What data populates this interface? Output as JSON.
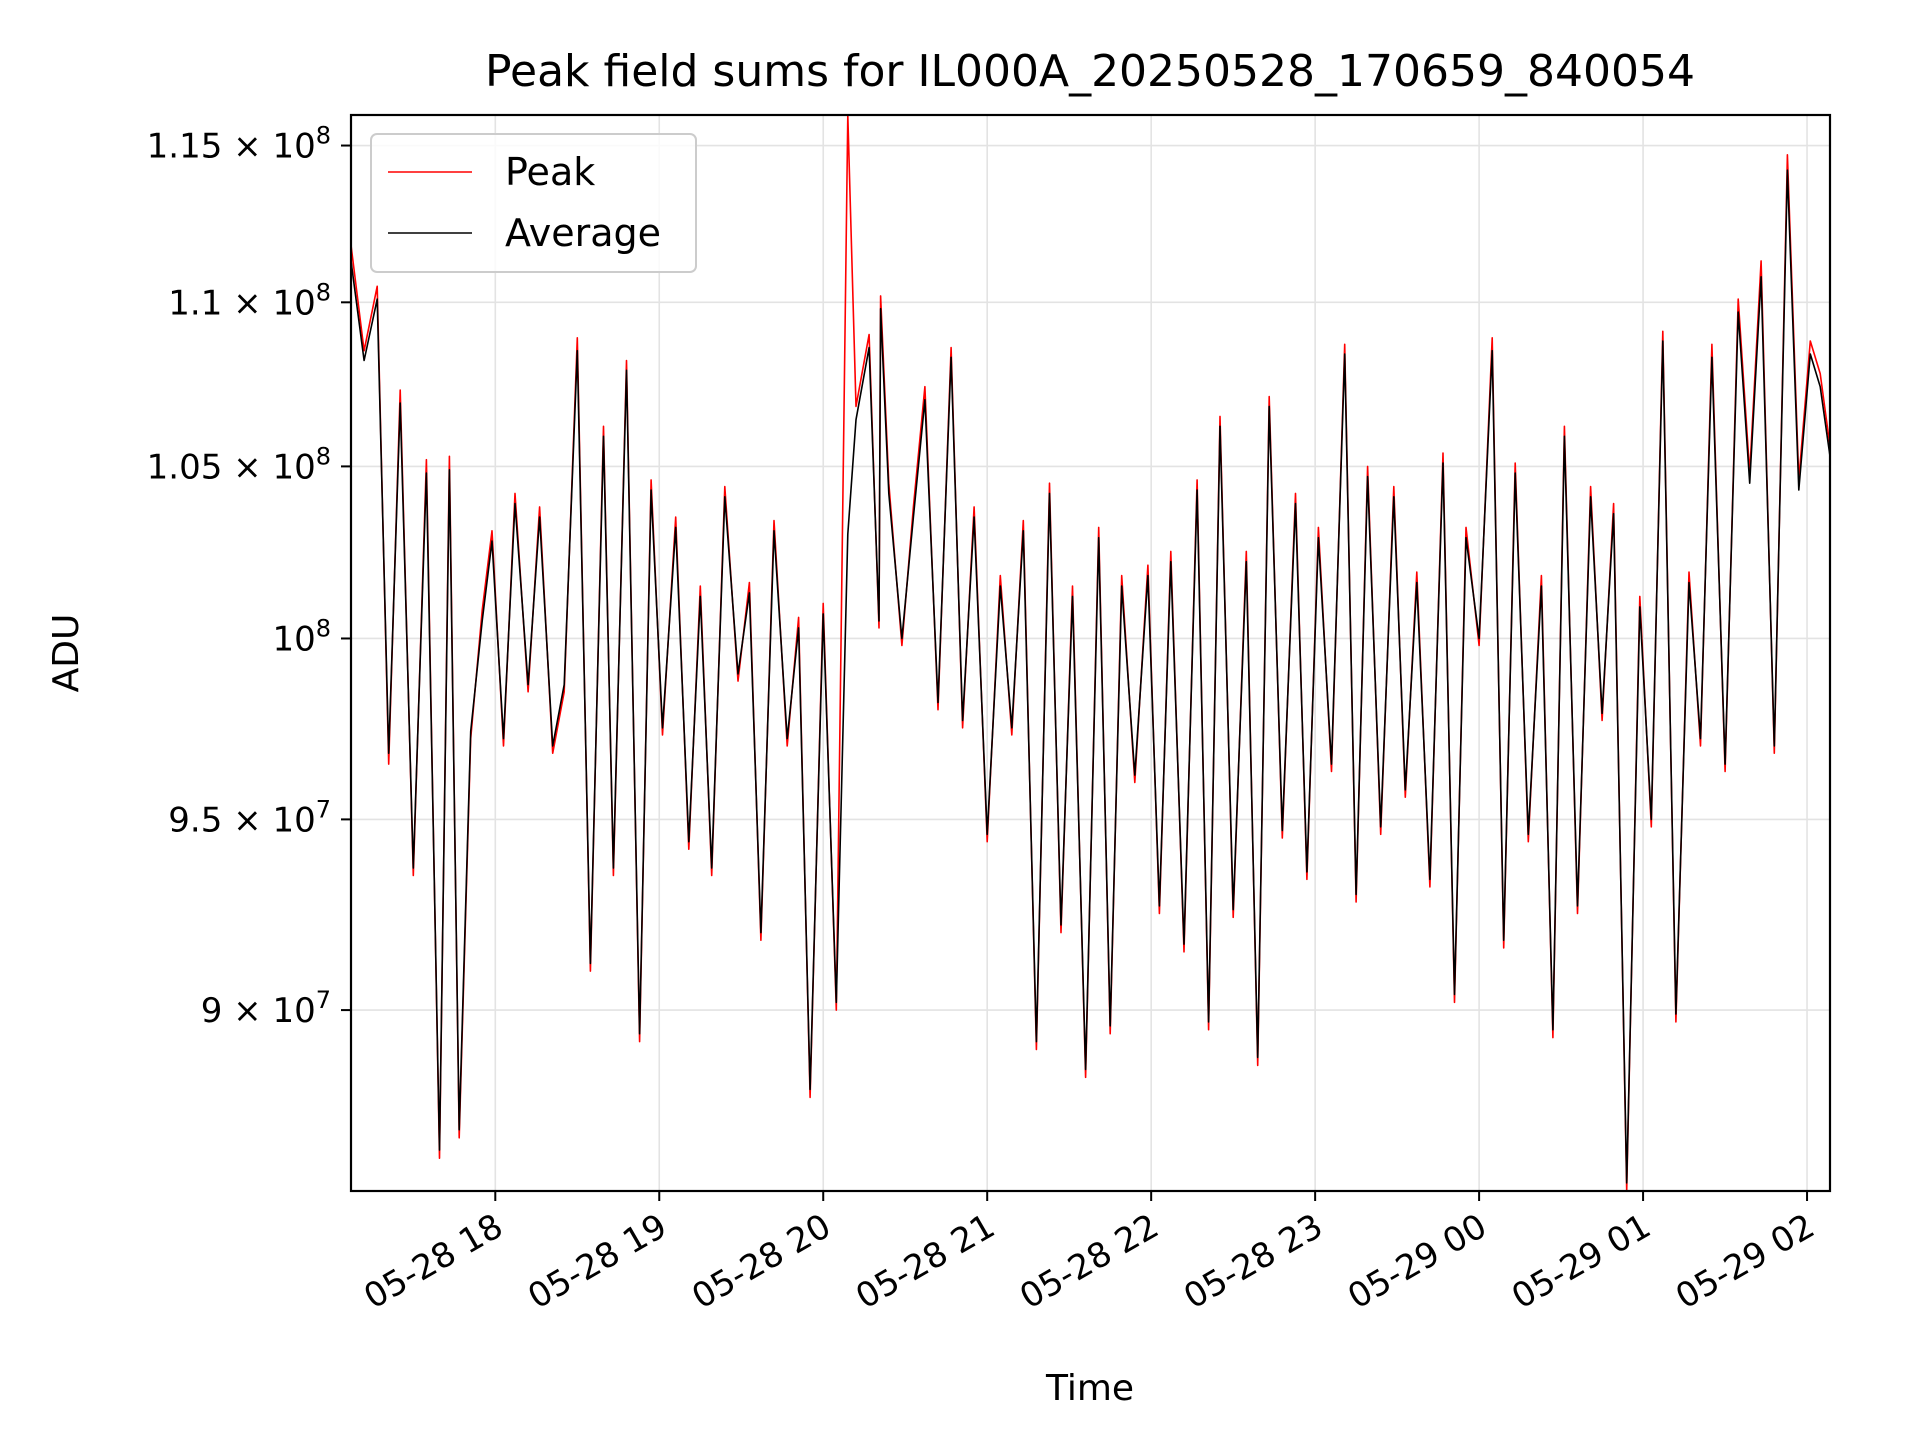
{
  "chart_data": {
    "type": "line",
    "title": "Peak field sums for IL000A_20250528_170659_840054",
    "xlabel": "Time",
    "ylabel": "ADU",
    "x_range_hours": [
      17.12,
      26.14
    ],
    "x_ticks": [
      {
        "label": "05-28 18",
        "hour": 18
      },
      {
        "label": "05-28 19",
        "hour": 19
      },
      {
        "label": "05-28 20",
        "hour": 20
      },
      {
        "label": "05-28 21",
        "hour": 21
      },
      {
        "label": "05-28 22",
        "hour": 22
      },
      {
        "label": "05-28 23",
        "hour": 23
      },
      {
        "label": "05-29 00",
        "hour": 24
      },
      {
        "label": "05-29 01",
        "hour": 25
      },
      {
        "label": "05-29 02",
        "hour": 26
      }
    ],
    "ylim": [
      85500000,
      116000000
    ],
    "y_scale": "log",
    "y_ticks": [
      {
        "value": 90000000,
        "mantissa": "9",
        "exp": "7"
      },
      {
        "value": 95000000,
        "mantissa": "9.5",
        "exp": "7"
      },
      {
        "value": 100000000,
        "mantissa": "",
        "exp": "8"
      },
      {
        "value": 105000000,
        "mantissa": "1.05",
        "exp": "8"
      },
      {
        "value": 110000000,
        "mantissa": "1.1",
        "exp": "8"
      },
      {
        "value": 115000000,
        "mantissa": "1.15",
        "exp": "8"
      }
    ],
    "grid": true,
    "legend_position": "top-left",
    "colors": {
      "peak": "#ff0000",
      "average": "#000000",
      "grid": "#e3e3e3"
    },
    "series": [
      {
        "name": "Peak",
        "color": "#ff0000",
        "x_hours": [
          17.12,
          17.2,
          17.28,
          17.35,
          17.42,
          17.5,
          17.58,
          17.66,
          17.72,
          17.78,
          17.85,
          17.92,
          17.98,
          18.05,
          18.12,
          18.2,
          18.27,
          18.35,
          18.42,
          18.5,
          18.58,
          18.66,
          18.72,
          18.8,
          18.88,
          18.95,
          19.02,
          19.1,
          19.18,
          19.25,
          19.32,
          19.4,
          19.48,
          19.55,
          19.62,
          19.7,
          19.78,
          19.85,
          19.92,
          20.0,
          20.08,
          20.15,
          20.2,
          20.28,
          20.34,
          20.35,
          20.4,
          20.48,
          20.55,
          20.62,
          20.7,
          20.78,
          20.85,
          20.92,
          21.0,
          21.08,
          21.15,
          21.22,
          21.3,
          21.38,
          21.45,
          21.52,
          21.6,
          21.68,
          21.75,
          21.82,
          21.9,
          21.98,
          22.05,
          22.12,
          22.2,
          22.28,
          22.35,
          22.42,
          22.5,
          22.58,
          22.65,
          22.72,
          22.8,
          22.88,
          22.95,
          23.02,
          23.1,
          23.18,
          23.25,
          23.32,
          23.4,
          23.48,
          23.55,
          23.62,
          23.7,
          23.78,
          23.85,
          23.92,
          24.0,
          24.08,
          24.15,
          24.22,
          24.3,
          24.38,
          24.45,
          24.52,
          24.6,
          24.68,
          24.75,
          24.82,
          24.9,
          24.98,
          25.05,
          25.12,
          25.2,
          25.28,
          25.35,
          25.42,
          25.5,
          25.58,
          25.65,
          25.72,
          25.8,
          25.88,
          25.95,
          26.02,
          26.08,
          26.14
        ],
        "values": [
          111800000,
          108500000,
          110500000,
          96500000,
          107300000,
          93500000,
          105200000,
          86300000,
          105300000,
          86800000,
          97200000,
          100800000,
          103100000,
          97000000,
          104200000,
          98500000,
          103800000,
          96800000,
          98500000,
          108900000,
          91000000,
          106200000,
          93500000,
          108200000,
          89200000,
          104600000,
          97300000,
          103500000,
          94200000,
          101500000,
          93500000,
          104400000,
          98800000,
          101600000,
          91800000,
          103400000,
          97000000,
          100600000,
          87800000,
          101000000,
          90000000,
          116000000,
          106800000,
          109000000,
          100300000,
          110200000,
          104500000,
          99800000,
          103800000,
          107400000,
          98000000,
          108600000,
          97500000,
          103800000,
          94400000,
          101800000,
          97300000,
          103400000,
          89000000,
          104500000,
          92000000,
          101500000,
          88300000,
          103200000,
          89400000,
          101800000,
          96000000,
          102100000,
          92500000,
          102500000,
          91500000,
          104600000,
          89500000,
          106500000,
          92400000,
          102500000,
          88600000,
          107100000,
          94500000,
          104200000,
          93400000,
          103200000,
          96300000,
          108700000,
          92800000,
          105000000,
          94600000,
          104400000,
          95600000,
          101900000,
          93200000,
          105400000,
          90200000,
          103200000,
          99800000,
          108900000,
          91600000,
          105100000,
          94400000,
          101800000,
          89300000,
          106200000,
          92500000,
          104400000,
          97700000,
          103900000,
          85500000,
          101200000,
          94800000,
          109100000,
          89700000,
          101900000,
          97000000,
          108700000,
          96300000,
          110100000,
          104800000,
          111300000,
          96800000,
          114700000,
          104600000,
          108800000,
          107800000,
          105600000
        ]
      },
      {
        "name": "Average",
        "color": "#000000",
        "x_hours": [
          17.12,
          17.2,
          17.28,
          17.35,
          17.42,
          17.5,
          17.58,
          17.66,
          17.72,
          17.78,
          17.85,
          17.92,
          17.98,
          18.05,
          18.12,
          18.2,
          18.27,
          18.35,
          18.42,
          18.5,
          18.58,
          18.66,
          18.72,
          18.8,
          18.88,
          18.95,
          19.02,
          19.1,
          19.18,
          19.25,
          19.32,
          19.4,
          19.48,
          19.55,
          19.62,
          19.7,
          19.78,
          19.85,
          19.92,
          20.0,
          20.08,
          20.15,
          20.2,
          20.28,
          20.34,
          20.35,
          20.4,
          20.48,
          20.55,
          20.62,
          20.7,
          20.78,
          20.85,
          20.92,
          21.0,
          21.08,
          21.15,
          21.22,
          21.3,
          21.38,
          21.45,
          21.52,
          21.6,
          21.68,
          21.75,
          21.82,
          21.9,
          21.98,
          22.05,
          22.12,
          22.2,
          22.28,
          22.35,
          22.42,
          22.5,
          22.58,
          22.65,
          22.72,
          22.8,
          22.88,
          22.95,
          23.02,
          23.1,
          23.18,
          23.25,
          23.32,
          23.4,
          23.48,
          23.55,
          23.62,
          23.7,
          23.78,
          23.85,
          23.92,
          24.0,
          24.08,
          24.15,
          24.22,
          24.3,
          24.38,
          24.45,
          24.52,
          24.6,
          24.68,
          24.75,
          24.82,
          24.9,
          24.98,
          25.05,
          25.12,
          25.2,
          25.28,
          25.35,
          25.42,
          25.5,
          25.58,
          25.65,
          25.72,
          25.8,
          25.88,
          25.95,
          26.02,
          26.08,
          26.14
        ],
        "values": [
          111300000,
          108200000,
          110100000,
          96800000,
          106900000,
          93700000,
          104800000,
          86500000,
          104900000,
          87000000,
          97400000,
          100500000,
          102800000,
          97200000,
          103900000,
          98700000,
          103500000,
          97000000,
          98700000,
          108500000,
          91200000,
          105900000,
          93700000,
          107900000,
          89400000,
          104300000,
          97500000,
          103200000,
          94400000,
          101200000,
          93700000,
          104100000,
          99000000,
          101300000,
          92000000,
          103100000,
          97200000,
          100300000,
          88000000,
          100700000,
          90200000,
          103000000,
          106400000,
          108600000,
          100500000,
          109800000,
          104200000,
          100000000,
          103500000,
          107000000,
          98200000,
          108300000,
          97700000,
          103500000,
          94600000,
          101500000,
          97500000,
          103100000,
          89200000,
          104200000,
          92200000,
          101200000,
          88500000,
          102900000,
          89600000,
          101500000,
          96200000,
          101800000,
          92700000,
          102200000,
          91700000,
          104300000,
          89700000,
          106200000,
          92600000,
          102200000,
          88800000,
          106800000,
          94700000,
          103900000,
          93600000,
          102900000,
          96500000,
          108400000,
          93000000,
          104700000,
          94800000,
          104100000,
          95800000,
          101600000,
          93400000,
          105100000,
          90400000,
          102900000,
          100000000,
          108500000,
          91800000,
          104800000,
          94600000,
          101500000,
          89500000,
          105900000,
          92700000,
          104100000,
          97900000,
          103600000,
          85700000,
          100900000,
          95000000,
          108800000,
          89900000,
          101600000,
          97200000,
          108300000,
          96500000,
          109700000,
          104500000,
          110800000,
          97000000,
          114200000,
          104300000,
          108400000,
          107400000,
          105300000
        ]
      }
    ]
  }
}
